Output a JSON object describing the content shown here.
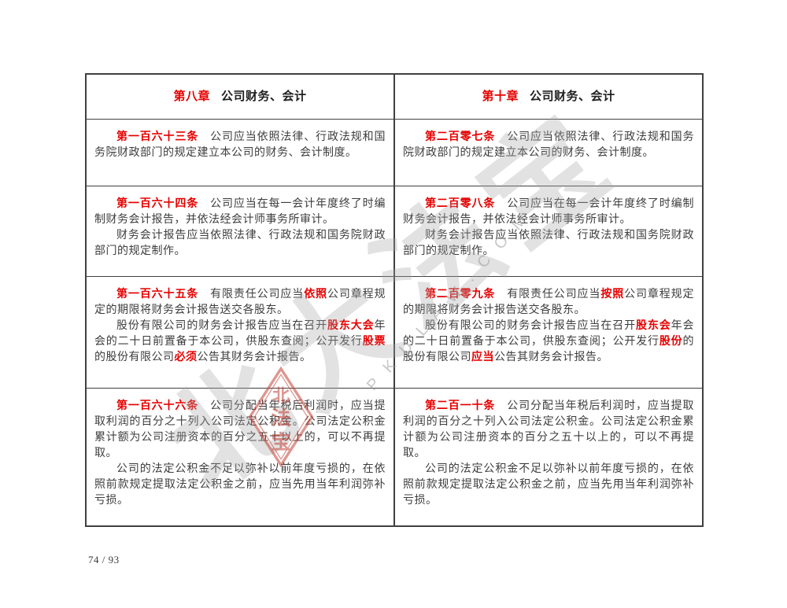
{
  "colors": {
    "accent-red": "#e60000",
    "text": "#3d3d3d",
    "border": "#404040",
    "seal-red": "#c44136",
    "watermark-gray": "#a8a8a8"
  },
  "page": {
    "footer_page_number": "74 / 93"
  },
  "watermark": {
    "calligraphy": "北大法宝",
    "latin": "P K U L A W . C O M",
    "seal_top": "北",
    "seal_middle": "法",
    "seal_bottom": "宝"
  },
  "table": {
    "headers": {
      "left": {
        "chapter": "第八章",
        "title": "公司财务、会计"
      },
      "right": {
        "chapter": "第十章",
        "title": "公司财务、会计"
      }
    },
    "rows": [
      {
        "left": {
          "paragraphs": [
            [
              {
                "t": "第一百六十三条",
                "art": true
              },
              {
                "t": "　公司应当依照法律、行政法规和国务院财政部门的规定建立本公司的财务、会计制度。"
              }
            ]
          ]
        },
        "right": {
          "paragraphs": [
            [
              {
                "t": "第二百零七条",
                "art": true
              },
              {
                "t": "　公司应当依照法律、行政法规和国务院财政部门的规定建立本公司的财务、会计制度。"
              }
            ]
          ]
        }
      },
      {
        "left": {
          "paragraphs": [
            [
              {
                "t": "第一百六十四条",
                "art": true
              },
              {
                "t": "　公司应当在每一会计年度终了时编制财务会计报告，并依法经会计师事务所审计。"
              }
            ],
            [
              {
                "t": "财务会计报告应当依照法律、行政法规和国务院财政部门的规定制作。"
              }
            ]
          ]
        },
        "right": {
          "paragraphs": [
            [
              {
                "t": "第二百零八条",
                "art": true
              },
              {
                "t": "　公司应当在每一会计年度终了时编制财务会计报告，并依法经会计师事务所审计。"
              }
            ],
            [
              {
                "t": "财务会计报告应当依照法律、行政法规和国务院财政部门的规定制作。"
              }
            ]
          ]
        }
      },
      {
        "left": {
          "paragraphs": [
            [
              {
                "t": "第一百六十五条",
                "art": true
              },
              {
                "t": "　有限责任公司应当"
              },
              {
                "t": "依照",
                "hl": true
              },
              {
                "t": "公司章程规定的期限将财务会计报告送交各股东。"
              }
            ],
            [
              {
                "t": "股份有限公司的财务会计报告应当在召开"
              },
              {
                "t": "股东大会",
                "hl": true
              },
              {
                "t": "年会的二十日前置备于本公司，供股东查阅；公开发行"
              },
              {
                "t": "股票",
                "hl": true
              },
              {
                "t": "的股份有限公司"
              },
              {
                "t": "必须",
                "hl": true
              },
              {
                "t": "公告其财务会计报告。"
              }
            ]
          ]
        },
        "right": {
          "paragraphs": [
            [
              {
                "t": "第二百零九条",
                "art": true
              },
              {
                "t": "　有限责任公司应当"
              },
              {
                "t": "按照",
                "hl": true
              },
              {
                "t": "公司章程规定的期限将财务会计报告送交各股东。"
              }
            ],
            [
              {
                "t": "股份有限公司的财务会计报告应当在召开"
              },
              {
                "t": "股东会",
                "hl": true
              },
              {
                "t": "年会的二十日前置备于本公司，供股东查阅；公开发行"
              },
              {
                "t": "股份",
                "hl": true
              },
              {
                "t": "的股份有限公司"
              },
              {
                "t": "应当",
                "hl": true
              },
              {
                "t": "公告其财务会计报告。"
              }
            ]
          ]
        }
      },
      {
        "left": {
          "paragraphs": [
            [
              {
                "t": "第一百六十六条",
                "art": true
              },
              {
                "t": "　公司分配当年税后利润时，应当提取利润的百分之十列入公司法定公积金。公司法定公积金累计额为公司注册资本的百分之五十以上的，可以不再提取。"
              }
            ],
            [
              {
                "t": "公司的法定公积金不足以弥补以前年度亏损的，在依照前款规定提取法定公积金之前，应当先用当年利润弥补亏损。"
              }
            ]
          ]
        },
        "right": {
          "paragraphs": [
            [
              {
                "t": "第二百一十条",
                "art": true
              },
              {
                "t": "　公司分配当年税后利润时，应当提取利润的百分之十列入公司法定公积金。公司法定公积金累计额为公司注册资本的百分之五十以上的，可以不再提取。"
              }
            ],
            [
              {
                "t": "公司的法定公积金不足以弥补以前年度亏损的，在依照前款规定提取法定公积金之前，应当先用当年利润弥补亏损。"
              }
            ]
          ]
        }
      }
    ]
  }
}
